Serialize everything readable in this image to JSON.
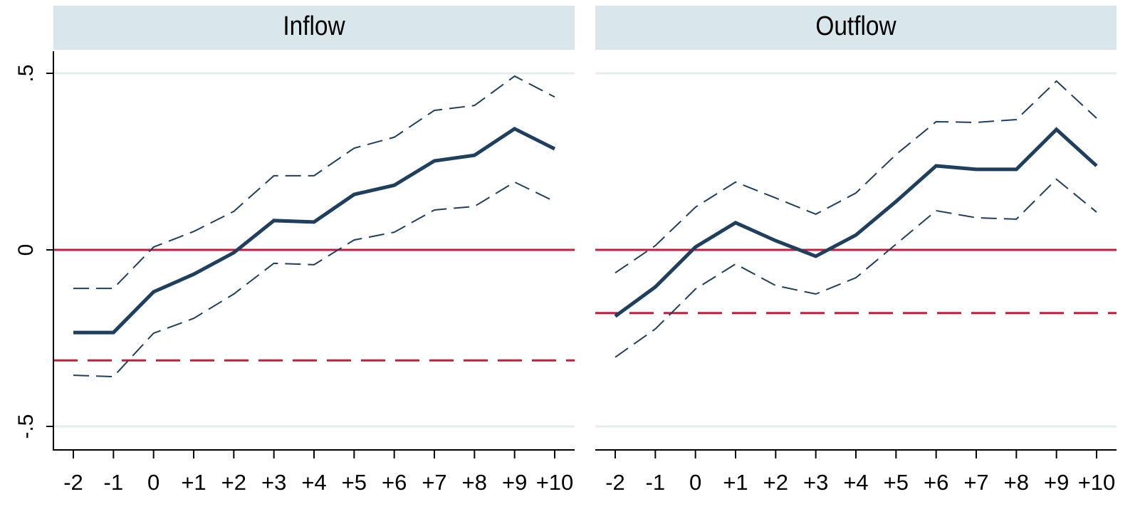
{
  "chart_data": [
    {
      "type": "line",
      "title": "Inflow",
      "categories": [
        "-2",
        "-1",
        "0",
        "+1",
        "+2",
        "+3",
        "+4",
        "+5",
        "+6",
        "+7",
        "+8",
        "+9",
        "+10"
      ],
      "ylim": [
        -0.5625,
        0.5625
      ],
      "yticks": [
        {
          "value": 0.5,
          "label": ".5"
        },
        0,
        {
          "value": -0.5,
          "label": "-.5"
        }
      ],
      "grid": true,
      "grid_color": "#e4eef0",
      "series": [
        {
          "color": "#1f3f5e",
          "width": 5,
          "dashed": false,
          "values": [
            -0.234,
            -0.234,
            -0.119,
            -0.069,
            -0.008,
            0.083,
            0.079,
            0.157,
            0.183,
            0.252,
            0.268,
            0.343,
            0.286
          ]
        },
        {
          "color": "#1f3f5e",
          "width": 2,
          "dashed": true,
          "values": [
            -0.109,
            -0.109,
            0.008,
            0.052,
            0.109,
            0.21,
            0.21,
            0.288,
            0.319,
            0.395,
            0.409,
            0.492,
            0.433
          ]
        },
        {
          "color": "#1f3f5e",
          "width": 2,
          "dashed": true,
          "values": [
            -0.355,
            -0.359,
            -0.236,
            -0.194,
            -0.125,
            -0.038,
            -0.042,
            0.028,
            0.05,
            0.113,
            0.123,
            0.192,
            0.137
          ]
        }
      ],
      "reference_lines": [
        {
          "value": 0,
          "color": "#c41e3a",
          "dashed": false
        },
        {
          "value": -0.313,
          "color": "#c41e3a",
          "dashed": true
        }
      ]
    },
    {
      "type": "line",
      "title": "Outflow",
      "categories": [
        "-2",
        "-1",
        "0",
        "+1",
        "+2",
        "+3",
        "+4",
        "+5",
        "+6",
        "+7",
        "+8",
        "+9",
        "+10"
      ],
      "ylim": [
        -0.5625,
        0.5625
      ],
      "yticks": [
        {
          "value": 0.5,
          "label": ".5"
        },
        0,
        {
          "value": -0.5,
          "label": "-.5"
        }
      ],
      "grid": true,
      "grid_color": "#e4eef0",
      "show_ytick_labels": false,
      "series": [
        {
          "color": "#1f3f5e",
          "width": 5,
          "dashed": false,
          "values": [
            -0.188,
            -0.105,
            0.008,
            0.077,
            0.026,
            -0.018,
            0.042,
            0.137,
            0.238,
            0.228,
            0.228,
            0.341,
            0.238
          ]
        },
        {
          "color": "#1f3f5e",
          "width": 2,
          "dashed": true,
          "values": [
            -0.065,
            0.012,
            0.121,
            0.192,
            0.147,
            0.101,
            0.161,
            0.27,
            0.363,
            0.361,
            0.369,
            0.478,
            0.373
          ]
        },
        {
          "color": "#1f3f5e",
          "width": 2,
          "dashed": true,
          "values": [
            -0.304,
            -0.224,
            -0.111,
            -0.04,
            -0.101,
            -0.125,
            -0.079,
            0.016,
            0.111,
            0.091,
            0.087,
            0.2,
            0.107
          ]
        }
      ],
      "reference_lines": [
        {
          "value": 0,
          "color": "#c41e3a",
          "dashed": false
        },
        {
          "value": -0.179,
          "color": "#c41e3a",
          "dashed": true
        }
      ]
    }
  ]
}
